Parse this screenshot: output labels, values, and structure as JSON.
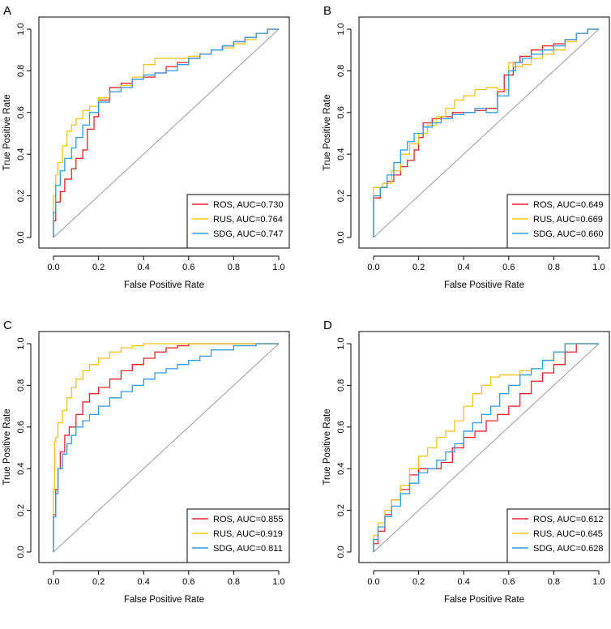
{
  "figure": {
    "colors": {
      "ROS": "#e0242a",
      "RUS": "#f2c21b",
      "SDG": "#2f9be0"
    }
  },
  "chart_data": [
    {
      "type": "line",
      "panel": "A",
      "xlabel": "False Positive Rate",
      "ylabel": "True Positive Rate",
      "xlim": [
        0,
        1
      ],
      "ylim": [
        0,
        1
      ],
      "xticks": [
        "0.0",
        "0.2",
        "0.4",
        "0.6",
        "0.8",
        "1.0"
      ],
      "yticks": [
        "0.0",
        "0.2",
        "0.4",
        "0.6",
        "0.8",
        "1.0"
      ],
      "legend_position": "bottom-right",
      "diagonal": true,
      "series": [
        {
          "name": "ROS",
          "legend": "ROS, AUC=0.730",
          "x": [
            0,
            0.01,
            0.03,
            0.05,
            0.08,
            0.1,
            0.13,
            0.15,
            0.18,
            0.2,
            0.25,
            0.3,
            0.35,
            0.4,
            0.45,
            0.5,
            0.55,
            0.6,
            0.65,
            0.7,
            0.75,
            0.8,
            0.85,
            0.9,
            0.95,
            1.0
          ],
          "y": [
            0,
            0.08,
            0.17,
            0.22,
            0.28,
            0.33,
            0.38,
            0.42,
            0.52,
            0.58,
            0.66,
            0.72,
            0.74,
            0.76,
            0.77,
            0.79,
            0.82,
            0.84,
            0.86,
            0.88,
            0.9,
            0.92,
            0.94,
            0.96,
            0.98,
            1.0
          ]
        },
        {
          "name": "RUS",
          "legend": "RUS, AUC=0.764",
          "x": [
            0,
            0.01,
            0.02,
            0.04,
            0.06,
            0.08,
            0.1,
            0.13,
            0.16,
            0.2,
            0.25,
            0.3,
            0.35,
            0.4,
            0.45,
            0.5,
            0.55,
            0.6,
            0.65,
            0.7,
            0.75,
            0.8,
            0.85,
            0.9,
            0.95,
            1.0
          ],
          "y": [
            0,
            0.2,
            0.3,
            0.36,
            0.44,
            0.51,
            0.54,
            0.57,
            0.61,
            0.63,
            0.67,
            0.7,
            0.73,
            0.77,
            0.83,
            0.86,
            0.86,
            0.86,
            0.87,
            0.88,
            0.9,
            0.91,
            0.93,
            0.95,
            0.98,
            1.0
          ]
        },
        {
          "name": "SDG",
          "legend": "SDG, AUC=0.747",
          "x": [
            0,
            0.01,
            0.03,
            0.05,
            0.08,
            0.1,
            0.13,
            0.16,
            0.2,
            0.25,
            0.3,
            0.35,
            0.4,
            0.45,
            0.5,
            0.55,
            0.6,
            0.65,
            0.7,
            0.75,
            0.8,
            0.85,
            0.9,
            0.95,
            1.0
          ],
          "y": [
            0,
            0.12,
            0.25,
            0.32,
            0.38,
            0.43,
            0.48,
            0.54,
            0.6,
            0.65,
            0.7,
            0.72,
            0.76,
            0.78,
            0.79,
            0.8,
            0.83,
            0.86,
            0.88,
            0.9,
            0.92,
            0.94,
            0.96,
            0.98,
            1.0
          ]
        }
      ]
    },
    {
      "type": "line",
      "panel": "B",
      "xlabel": "False Positive Rate",
      "ylabel": "True Positive Rate",
      "xlim": [
        0,
        1
      ],
      "ylim": [
        0,
        1
      ],
      "xticks": [
        "0.0",
        "0.2",
        "0.4",
        "0.6",
        "0.8",
        "1.0"
      ],
      "yticks": [
        "0.0",
        "0.2",
        "0.4",
        "0.6",
        "0.8",
        "1.0"
      ],
      "legend_position": "bottom-right",
      "diagonal": true,
      "series": [
        {
          "name": "ROS",
          "legend": "ROS, AUC=0.649",
          "x": [
            0,
            0,
            0.03,
            0.06,
            0.09,
            0.12,
            0.15,
            0.18,
            0.2,
            0.22,
            0.26,
            0.3,
            0.35,
            0.4,
            0.45,
            0.5,
            0.55,
            0.58,
            0.62,
            0.65,
            0.7,
            0.75,
            0.8,
            0.85,
            0.9,
            0.95,
            1.0
          ],
          "y": [
            0,
            0.19,
            0.19,
            0.24,
            0.27,
            0.3,
            0.34,
            0.37,
            0.42,
            0.48,
            0.55,
            0.57,
            0.58,
            0.6,
            0.6,
            0.61,
            0.62,
            0.7,
            0.78,
            0.84,
            0.87,
            0.9,
            0.92,
            0.93,
            0.95,
            0.98,
            1.0
          ]
        },
        {
          "name": "RUS",
          "legend": "RUS, AUC=0.669",
          "x": [
            0,
            0,
            0.04,
            0.08,
            0.12,
            0.16,
            0.2,
            0.24,
            0.28,
            0.32,
            0.36,
            0.4,
            0.45,
            0.5,
            0.55,
            0.6,
            0.62,
            0.66,
            0.7,
            0.75,
            0.8,
            0.85,
            0.9,
            0.95,
            1.0
          ],
          "y": [
            0,
            0.23,
            0.24,
            0.26,
            0.32,
            0.4,
            0.45,
            0.5,
            0.54,
            0.58,
            0.62,
            0.66,
            0.68,
            0.71,
            0.72,
            0.71,
            0.84,
            0.82,
            0.83,
            0.86,
            0.88,
            0.9,
            0.94,
            0.98,
            1.0
          ]
        },
        {
          "name": "SDG",
          "legend": "SDG, AUC=0.660",
          "x": [
            0,
            0,
            0.03,
            0.06,
            0.09,
            0.12,
            0.15,
            0.18,
            0.22,
            0.26,
            0.3,
            0.35,
            0.4,
            0.45,
            0.5,
            0.55,
            0.6,
            0.63,
            0.66,
            0.7,
            0.75,
            0.8,
            0.85,
            0.9,
            0.95,
            1.0
          ],
          "y": [
            0,
            0.18,
            0.2,
            0.24,
            0.3,
            0.36,
            0.42,
            0.46,
            0.5,
            0.53,
            0.55,
            0.57,
            0.59,
            0.6,
            0.62,
            0.6,
            0.68,
            0.8,
            0.84,
            0.86,
            0.88,
            0.9,
            0.92,
            0.95,
            0.98,
            1.0
          ]
        }
      ]
    },
    {
      "type": "line",
      "panel": "C",
      "xlabel": "False Positive Rate",
      "ylabel": "True Positive Rate",
      "xlim": [
        0,
        1
      ],
      "ylim": [
        0,
        1
      ],
      "xticks": [
        "0.0",
        "0.2",
        "0.4",
        "0.6",
        "0.8",
        "1.0"
      ],
      "yticks": [
        "0.0",
        "0.2",
        "0.4",
        "0.6",
        "0.8",
        "1.0"
      ],
      "legend_position": "bottom-right",
      "diagonal": true,
      "series": [
        {
          "name": "ROS",
          "legend": "ROS, AUC=0.855",
          "x": [
            0,
            0.01,
            0.02,
            0.03,
            0.05,
            0.07,
            0.1,
            0.13,
            0.16,
            0.2,
            0.25,
            0.3,
            0.35,
            0.4,
            0.45,
            0.5,
            0.55,
            0.6,
            0.7,
            0.8,
            0.9,
            1.0
          ],
          "y": [
            0,
            0.18,
            0.3,
            0.4,
            0.48,
            0.56,
            0.6,
            0.66,
            0.72,
            0.76,
            0.79,
            0.83,
            0.87,
            0.9,
            0.93,
            0.96,
            0.98,
            0.99,
            1.0,
            1.0,
            1.0,
            1.0
          ]
        },
        {
          "name": "RUS",
          "legend": "RUS, AUC=0.919",
          "x": [
            0,
            0.005,
            0.01,
            0.02,
            0.04,
            0.06,
            0.08,
            0.1,
            0.13,
            0.16,
            0.2,
            0.25,
            0.3,
            0.35,
            0.4,
            0.5,
            0.6,
            0.7,
            0.8,
            0.9,
            1.0
          ],
          "y": [
            0,
            0.3,
            0.53,
            0.55,
            0.62,
            0.68,
            0.74,
            0.79,
            0.83,
            0.87,
            0.9,
            0.93,
            0.96,
            0.98,
            0.99,
            1.0,
            1.0,
            1.0,
            1.0,
            1.0,
            1.0
          ]
        },
        {
          "name": "SDG",
          "legend": "SDG, AUC=0.811",
          "x": [
            0,
            0.01,
            0.02,
            0.04,
            0.06,
            0.08,
            0.1,
            0.13,
            0.16,
            0.2,
            0.25,
            0.3,
            0.35,
            0.4,
            0.45,
            0.5,
            0.55,
            0.6,
            0.65,
            0.7,
            0.8,
            0.9,
            1.0
          ],
          "y": [
            0,
            0.17,
            0.28,
            0.4,
            0.47,
            0.52,
            0.56,
            0.6,
            0.63,
            0.66,
            0.7,
            0.74,
            0.77,
            0.8,
            0.83,
            0.86,
            0.88,
            0.9,
            0.92,
            0.94,
            0.97,
            0.99,
            1.0
          ]
        }
      ]
    },
    {
      "type": "line",
      "panel": "D",
      "xlabel": "False Positive Rate",
      "ylabel": "True Positive Rate",
      "xlim": [
        0,
        1
      ],
      "ylim": [
        0,
        1
      ],
      "xticks": [
        "0.0",
        "0.2",
        "0.4",
        "0.6",
        "0.8",
        "1.0"
      ],
      "yticks": [
        "0.0",
        "0.2",
        "0.4",
        "0.6",
        "0.8",
        "1.0"
      ],
      "legend_position": "bottom-right",
      "diagonal": true,
      "series": [
        {
          "name": "ROS",
          "legend": "ROS, AUC=0.612",
          "x": [
            0,
            0.02,
            0.05,
            0.08,
            0.12,
            0.16,
            0.2,
            0.25,
            0.3,
            0.35,
            0.4,
            0.45,
            0.5,
            0.55,
            0.6,
            0.65,
            0.7,
            0.75,
            0.8,
            0.85,
            0.9,
            0.95,
            1.0
          ],
          "y": [
            0,
            0.04,
            0.1,
            0.18,
            0.25,
            0.3,
            0.37,
            0.4,
            0.4,
            0.43,
            0.5,
            0.55,
            0.58,
            0.63,
            0.66,
            0.7,
            0.76,
            0.82,
            0.86,
            0.9,
            0.96,
            1.0,
            1.0
          ]
        },
        {
          "name": "RUS",
          "legend": "RUS, AUC=0.645",
          "x": [
            0,
            0.02,
            0.05,
            0.08,
            0.12,
            0.16,
            0.2,
            0.24,
            0.28,
            0.32,
            0.36,
            0.4,
            0.44,
            0.48,
            0.52,
            0.56,
            0.6,
            0.65,
            0.7,
            0.75,
            0.8,
            0.85,
            0.9,
            1.0
          ],
          "y": [
            0,
            0.08,
            0.14,
            0.2,
            0.25,
            0.32,
            0.4,
            0.46,
            0.5,
            0.55,
            0.58,
            0.63,
            0.7,
            0.76,
            0.8,
            0.84,
            0.85,
            0.85,
            0.87,
            0.88,
            0.92,
            0.96,
            1.0,
            1.0
          ]
        },
        {
          "name": "SDG",
          "legend": "SDG, AUC=0.628",
          "x": [
            0,
            0.02,
            0.05,
            0.08,
            0.12,
            0.16,
            0.2,
            0.24,
            0.28,
            0.32,
            0.36,
            0.4,
            0.44,
            0.48,
            0.52,
            0.56,
            0.6,
            0.65,
            0.7,
            0.75,
            0.8,
            0.85,
            0.9,
            1.0
          ],
          "y": [
            0,
            0.06,
            0.12,
            0.17,
            0.22,
            0.28,
            0.33,
            0.38,
            0.4,
            0.44,
            0.48,
            0.52,
            0.58,
            0.62,
            0.66,
            0.7,
            0.76,
            0.8,
            0.85,
            0.88,
            0.92,
            0.96,
            1.0,
            1.0
          ]
        }
      ]
    }
  ]
}
